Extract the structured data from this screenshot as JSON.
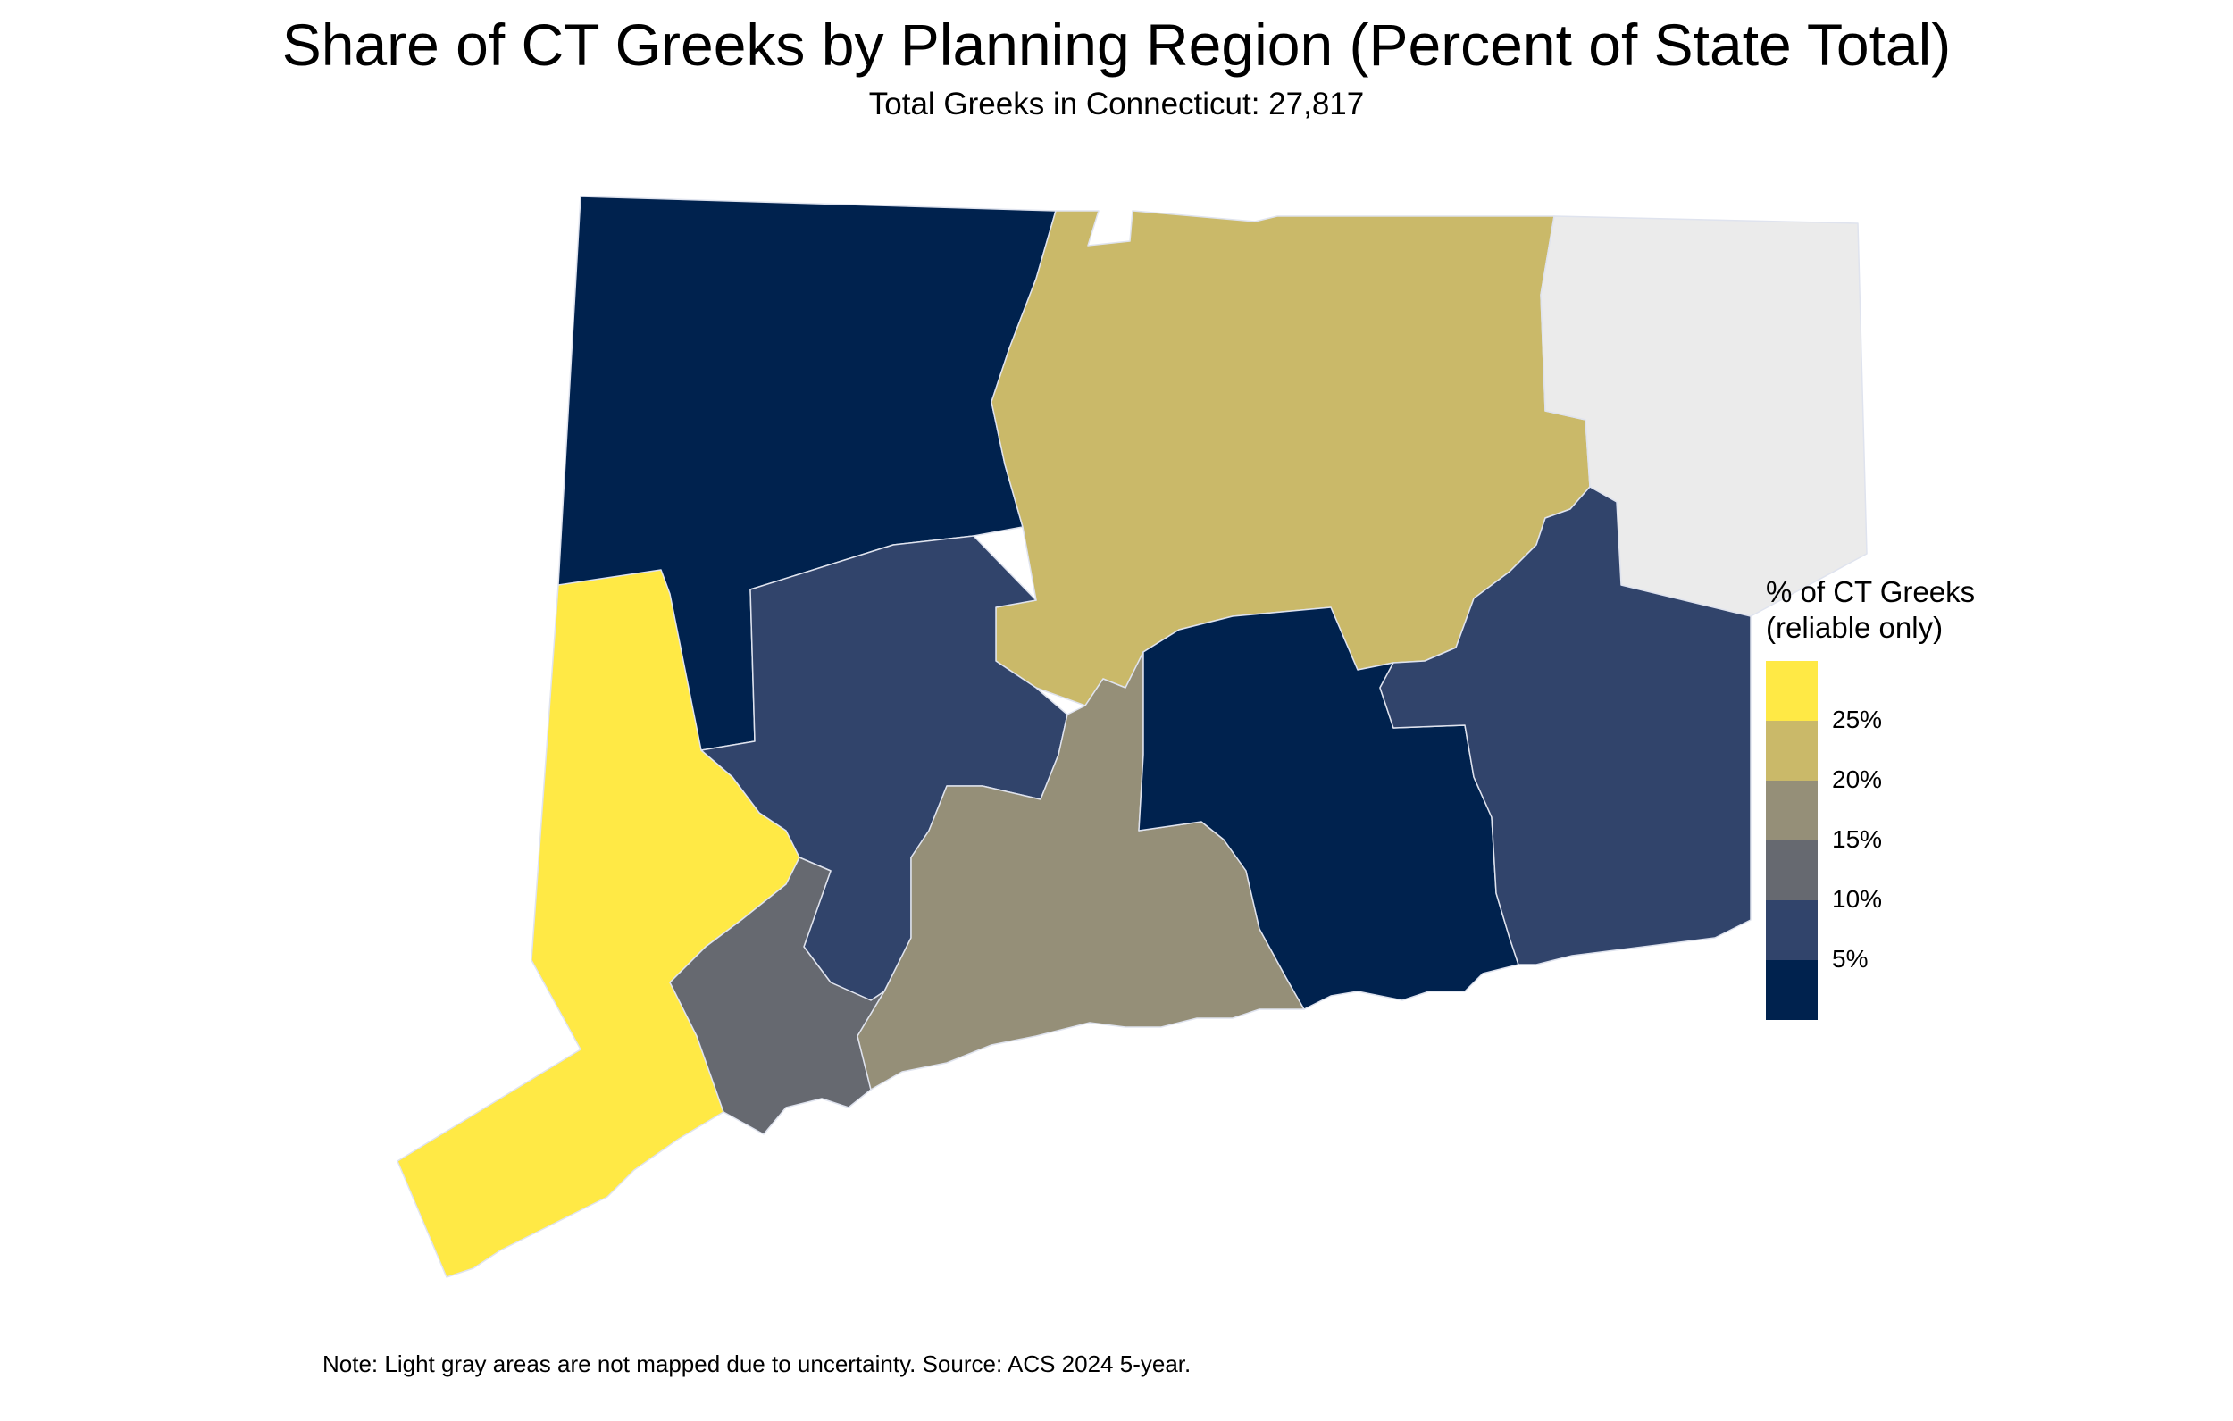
{
  "title": "Share of CT Greeks by Planning Region (Percent of State Total)",
  "subtitle": "Total Greeks in Connecticut: 27,817",
  "note": "Note: Light gray areas are not mapped due to uncertainty. Source: ACS 2024 5-year.",
  "legend": {
    "title": "% of CT Greeks\n(reliable only)",
    "labels": [
      "25%",
      "20%",
      "15%",
      "10%",
      "5%"
    ],
    "colors": [
      "#ffe945",
      "#cab969",
      "#958f78",
      "#666970",
      "#31446b",
      "#00224e"
    ]
  },
  "colors": {
    "not_mapped": "#ebebeb",
    "region_border": "#dfe3ee"
  }
}
